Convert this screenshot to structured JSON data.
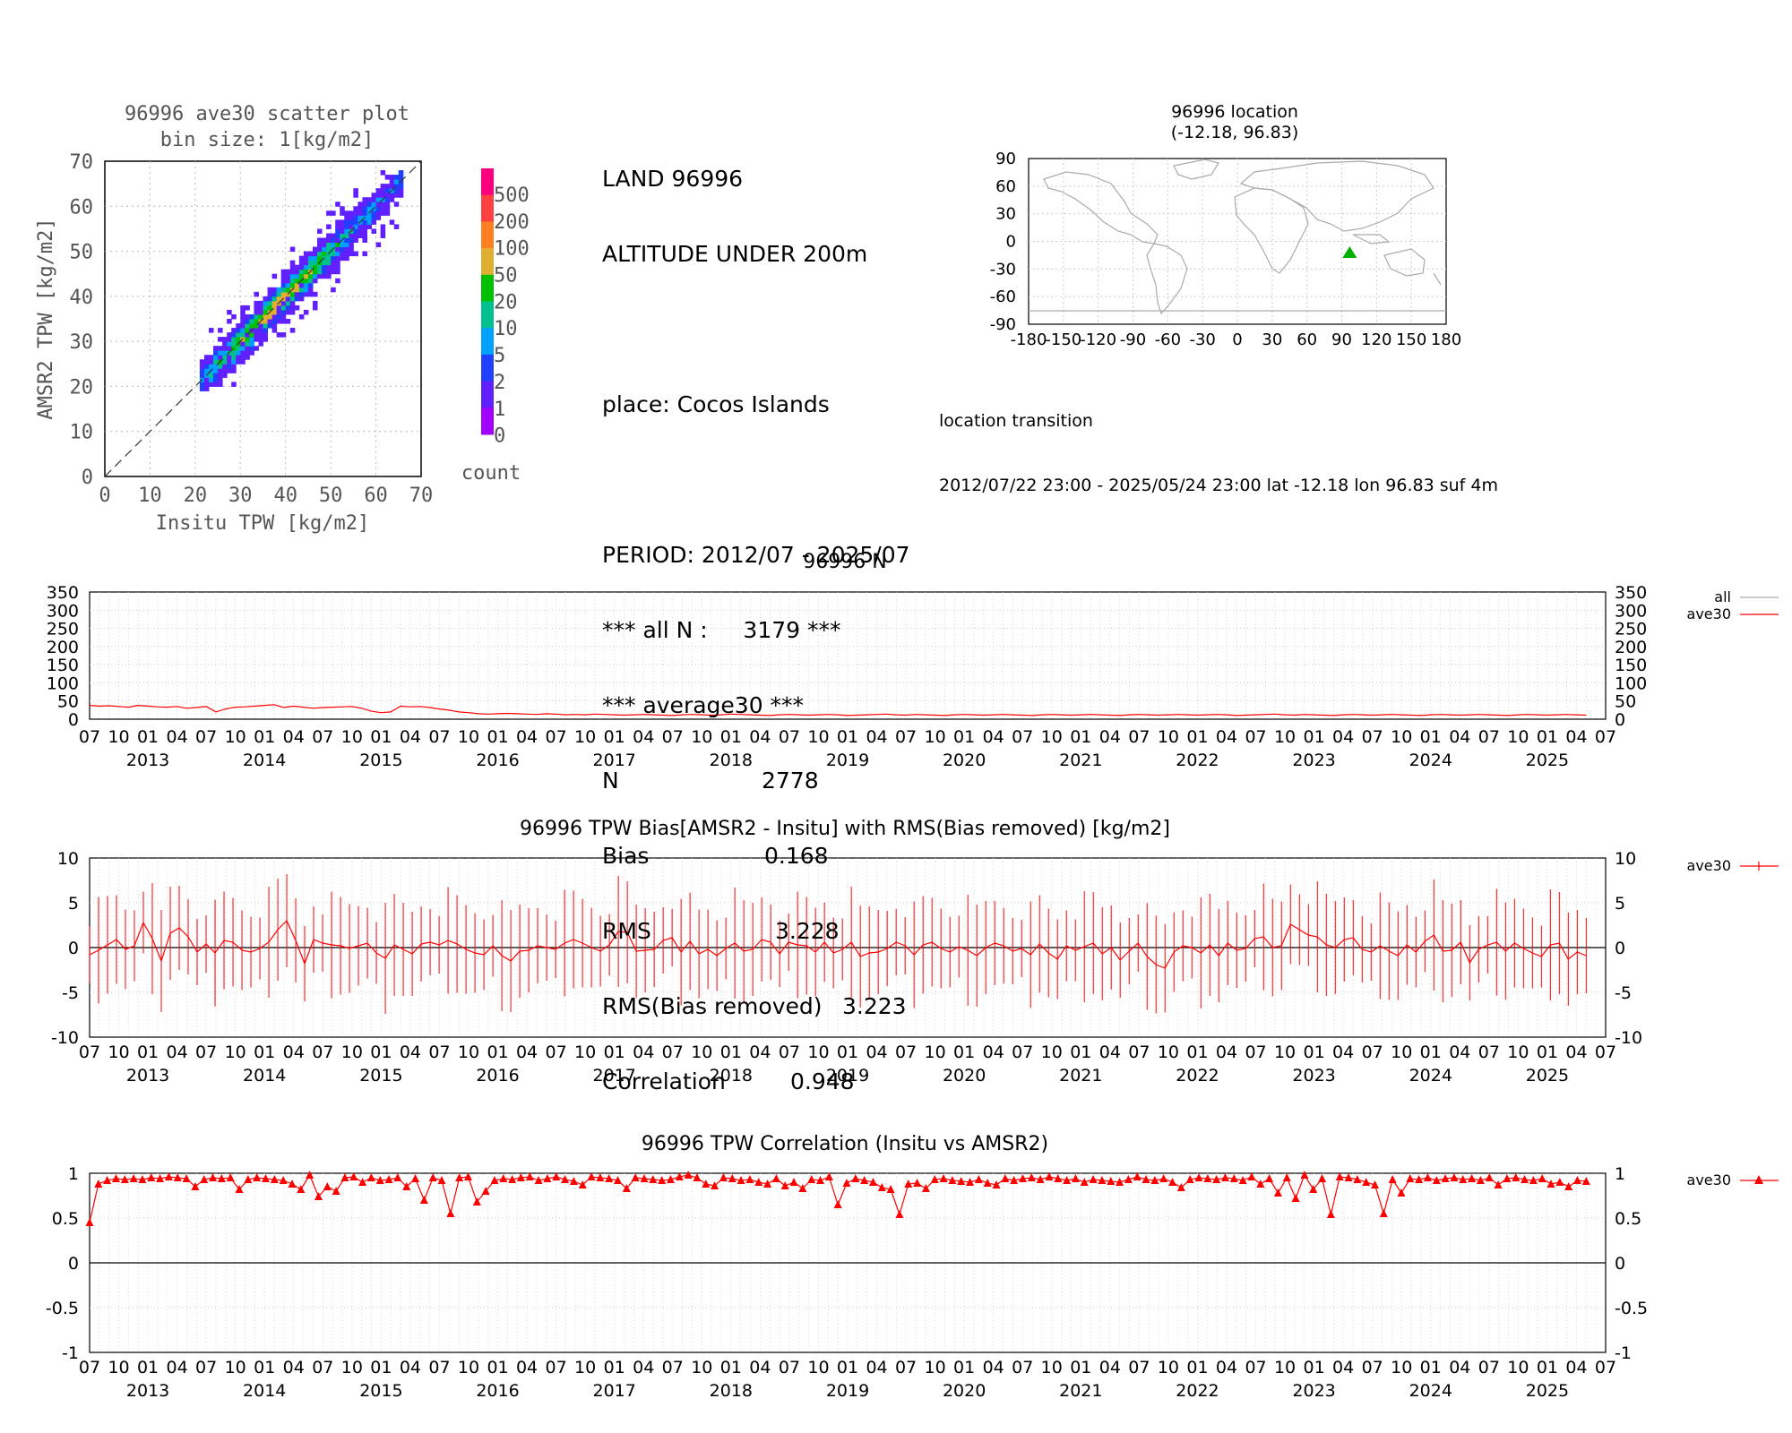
{
  "scatter": {
    "title": "96996 ave30 scatter plot",
    "subtitle": "bin size: 1[kg/m2]",
    "xlabel": "Insitu TPW [kg/m2]",
    "ylabel": "AMSR2 TPW [kg/m2]",
    "xticks": [
      "0",
      "10",
      "20",
      "30",
      "40",
      "50",
      "60",
      "70"
    ],
    "yticks": [
      "0",
      "10",
      "20",
      "30",
      "40",
      "50",
      "60",
      "70"
    ],
    "colorbar_labels": [
      "500",
      "200",
      "100",
      "50",
      "20",
      "10",
      "5",
      "2",
      "1",
      "0"
    ],
    "colorbar_colors": [
      "#ff0080",
      "#ff4040",
      "#ff8020",
      "#e0b030",
      "#00c000",
      "#00c090",
      "#00a0ff",
      "#2040ff",
      "#6020ff",
      "#a000ff"
    ],
    "colorbar_title": "count"
  },
  "stats": {
    "line1": "LAND 96996",
    "line2": "ALTITUDE UNDER 200m",
    "line3": "place: Cocos Islands",
    "line4": "PERIOD: 2012/07 - 2025/07",
    "line5": "*** all N :     3179 ***",
    "line6": "*** average30 ***",
    "n_label": "N",
    "n_value": "2778",
    "bias_label": "Bias",
    "bias_value": "0.168",
    "rms_label": "RMS",
    "rms_value": "3.228",
    "rmsb_label": "RMS(Bias removed)",
    "rmsb_value": "3.223",
    "corr_label": "Correlation",
    "corr_value": "0.948"
  },
  "location": {
    "title": "96996 location",
    "subtitle": "(-12.18, 96.83)",
    "yticks": [
      "90",
      "60",
      "30",
      "0",
      "-30",
      "-60",
      "-90"
    ],
    "xticks": [
      "-180",
      "-150",
      "-120",
      "-90",
      "-60",
      "-30",
      "0",
      "30",
      "60",
      "90",
      "120",
      "150",
      "180"
    ],
    "transition_title": "location transition",
    "transition_text": "2012/07/22 23:00 - 2025/05/24 23:00 lat -12.18 lon 96.83 suf 4m",
    "marker_lat": -12.18,
    "marker_lon": 96.83,
    "marker_color": "#00b000"
  },
  "timeseries": {
    "month_labels": [
      "07",
      "10",
      "01",
      "04",
      "07",
      "10",
      "01",
      "04",
      "07",
      "10",
      "01",
      "04",
      "07",
      "10",
      "01",
      "04",
      "07",
      "10",
      "01",
      "04",
      "07",
      "10",
      "01",
      "04",
      "07",
      "10",
      "01",
      "04",
      "07",
      "10",
      "01",
      "04",
      "07",
      "10",
      "01",
      "04",
      "07",
      "10",
      "01",
      "04",
      "07",
      "10",
      "01",
      "04",
      "07",
      "10",
      "01",
      "04",
      "07",
      "10",
      "01",
      "04",
      "07"
    ],
    "year_labels": [
      "2013",
      "2014",
      "2015",
      "2016",
      "2017",
      "2018",
      "2019",
      "2020",
      "2021",
      "2022",
      "2023",
      "2024",
      "2025"
    ]
  },
  "chart_data": [
    {
      "type": "line",
      "title": "96996 N",
      "ylim": [
        0,
        350
      ],
      "yticks": [
        "350",
        "300",
        "250",
        "200",
        "150",
        "100",
        "50",
        "0"
      ],
      "legend": [
        "all",
        "ave30"
      ],
      "series": [
        {
          "name": "ave30",
          "color": "#ff0000",
          "values": [
            38,
            36,
            37,
            35,
            33,
            38,
            36,
            34,
            33,
            35,
            30,
            32,
            35,
            20,
            28,
            33,
            34,
            36,
            38,
            40,
            32,
            36,
            33,
            30,
            32,
            33,
            34,
            35,
            30,
            22,
            18,
            20,
            36,
            34,
            35,
            32,
            28,
            25,
            20,
            18,
            15,
            14,
            15,
            16,
            15,
            14,
            13,
            15,
            14,
            12,
            13,
            12,
            14,
            13,
            12,
            11,
            12,
            13,
            12,
            11,
            10,
            12,
            13,
            12,
            11,
            12,
            14,
            13,
            12,
            11,
            10,
            12,
            13,
            12,
            11,
            12,
            13,
            12,
            10,
            11,
            12,
            13,
            14,
            12,
            11,
            13,
            12,
            11,
            10,
            12,
            13,
            12,
            11,
            12,
            13,
            12,
            11,
            10,
            12,
            13,
            12,
            11,
            12,
            13,
            12,
            11,
            10,
            12,
            13,
            12,
            11,
            12,
            13,
            12,
            11,
            12,
            13,
            12,
            10,
            11,
            12,
            13,
            14,
            12,
            11,
            13,
            12,
            11,
            10,
            12,
            13,
            12,
            11,
            12,
            13,
            12,
            11,
            10,
            12,
            13,
            12,
            11,
            12,
            13,
            12,
            11,
            10,
            12,
            13,
            12,
            11,
            12,
            13,
            12,
            11
          ]
        }
      ]
    },
    {
      "type": "line",
      "title": "96996 TPW Bias[AMSR2 - Insitu] with RMS(Bias removed) [kg/m2]",
      "ylim": [
        -10,
        10
      ],
      "yticks": [
        "10",
        "5",
        "0",
        "-5",
        "-10"
      ],
      "legend": [
        "ave30"
      ],
      "series": [
        {
          "name": "ave30",
          "color": "#ff0000",
          "values": [
            -0.8,
            -0.3,
            0.3,
            0.9,
            -0.2,
            0.2,
            2.8,
            1.0,
            -1.5,
            1.6,
            2.2,
            1.2,
            -0.5,
            0.4,
            -0.6,
            0.8,
            0.6,
            -0.3,
            -0.5,
            -0.1,
            0.6,
            2.0,
            3.0,
            0.8,
            -1.8,
            0.9,
            0.5,
            0.3,
            0.2,
            -0.1,
            0.2,
            0.5,
            -0.6,
            -1.2,
            0.3,
            -0.2,
            -0.7,
            0.4,
            0.6,
            0.3,
            0.8,
            0.4,
            -0.2,
            -0.6,
            -0.8,
            0.2,
            -0.9,
            -1.5,
            -0.4,
            -0.3,
            0.2,
            0.0,
            -0.2,
            0.5,
            0.9,
            0.5,
            0.0,
            -0.4,
            0.3,
            1.8,
            1.7,
            -0.4,
            -0.3,
            -0.2,
            0.8,
            1.1,
            -0.5,
            0.7,
            -0.7,
            -0.2,
            -0.9,
            -0.1,
            0.5,
            -0.4,
            -0.2,
            0.9,
            0.6,
            -0.7,
            0.6,
            0.3,
            0.2,
            -0.5,
            0.6,
            -0.6,
            -0.2,
            0.6,
            -1.0,
            -0.6,
            -0.5,
            -0.1,
            0.6,
            0.2,
            -0.8,
            0.3,
            0.6,
            -0.1,
            -0.5,
            0.1,
            -0.3,
            -0.9,
            0.0,
            0.5,
            0.2,
            -0.4,
            -0.1,
            -0.8,
            0.4,
            -0.6,
            -1.3,
            0.2,
            -0.3,
            0.1,
            0.5,
            -0.7,
            0.0,
            -1.4,
            -0.4,
            0.5,
            -1.0,
            -1.9,
            -2.3,
            -0.5,
            0.2,
            0.0,
            -0.6,
            0.3,
            -0.9,
            0.5,
            -0.3,
            -0.1,
            1.0,
            1.2,
            0.0,
            0.2,
            2.6,
            2.0,
            1.4,
            1.2,
            0.3,
            0.0,
            0.9,
            1.1,
            -0.2,
            -0.5,
            0.2,
            -0.4,
            -0.9,
            0.3,
            -0.5,
            0.7,
            1.4,
            -0.4,
            -0.3,
            0.6,
            -1.7,
            -0.2,
            0.3,
            0.6,
            -0.4,
            0.5,
            -0.1,
            -0.6,
            -1.0,
            0.3,
            0.5,
            -1.3,
            -0.5,
            -0.9
          ]
        }
      ]
    },
    {
      "type": "line",
      "title": "96996 TPW Correlation (Insitu vs AMSR2)",
      "ylim": [
        -1,
        1
      ],
      "yticks": [
        "1",
        "0.5",
        "0",
        "-0.5",
        "-1"
      ],
      "legend": [
        "ave30"
      ],
      "series": [
        {
          "name": "ave30",
          "color": "#ff0000",
          "values": [
            0.45,
            0.88,
            0.92,
            0.94,
            0.93,
            0.94,
            0.93,
            0.95,
            0.94,
            0.96,
            0.95,
            0.94,
            0.85,
            0.93,
            0.95,
            0.94,
            0.95,
            0.82,
            0.93,
            0.95,
            0.94,
            0.93,
            0.92,
            0.88,
            0.82,
            0.98,
            0.74,
            0.85,
            0.8,
            0.95,
            0.96,
            0.9,
            0.95,
            0.92,
            0.93,
            0.95,
            0.85,
            0.94,
            0.7,
            0.95,
            0.92,
            0.55,
            0.95,
            0.96,
            0.68,
            0.8,
            0.92,
            0.94,
            0.93,
            0.95,
            0.96,
            0.92,
            0.94,
            0.96,
            0.93,
            0.91,
            0.87,
            0.96,
            0.95,
            0.94,
            0.92,
            0.83,
            0.95,
            0.94,
            0.93,
            0.92,
            0.93,
            0.96,
            0.98,
            0.95,
            0.88,
            0.86,
            0.95,
            0.94,
            0.92,
            0.93,
            0.9,
            0.88,
            0.94,
            0.86,
            0.9,
            0.83,
            0.93,
            0.92,
            0.96,
            0.65,
            0.89,
            0.94,
            0.92,
            0.9,
            0.84,
            0.82,
            0.54,
            0.88,
            0.89,
            0.83,
            0.93,
            0.94,
            0.92,
            0.91,
            0.9,
            0.93,
            0.89,
            0.87,
            0.94,
            0.92,
            0.94,
            0.95,
            0.93,
            0.96,
            0.94,
            0.92,
            0.94,
            0.9,
            0.93,
            0.92,
            0.91,
            0.9,
            0.93,
            0.96,
            0.93,
            0.92,
            0.94,
            0.9,
            0.84,
            0.93,
            0.95,
            0.94,
            0.93,
            0.95,
            0.94,
            0.92,
            0.96,
            0.88,
            0.94,
            0.78,
            0.95,
            0.72,
            0.98,
            0.82,
            0.94,
            0.54,
            0.96,
            0.95,
            0.93,
            0.9,
            0.87,
            0.55,
            0.93,
            0.78,
            0.94,
            0.93,
            0.95,
            0.92,
            0.94,
            0.95,
            0.93,
            0.94,
            0.92,
            0.95,
            0.87,
            0.94,
            0.95,
            0.93,
            0.92,
            0.94,
            0.88,
            0.9,
            0.85,
            0.92,
            0.91
          ]
        }
      ]
    }
  ]
}
